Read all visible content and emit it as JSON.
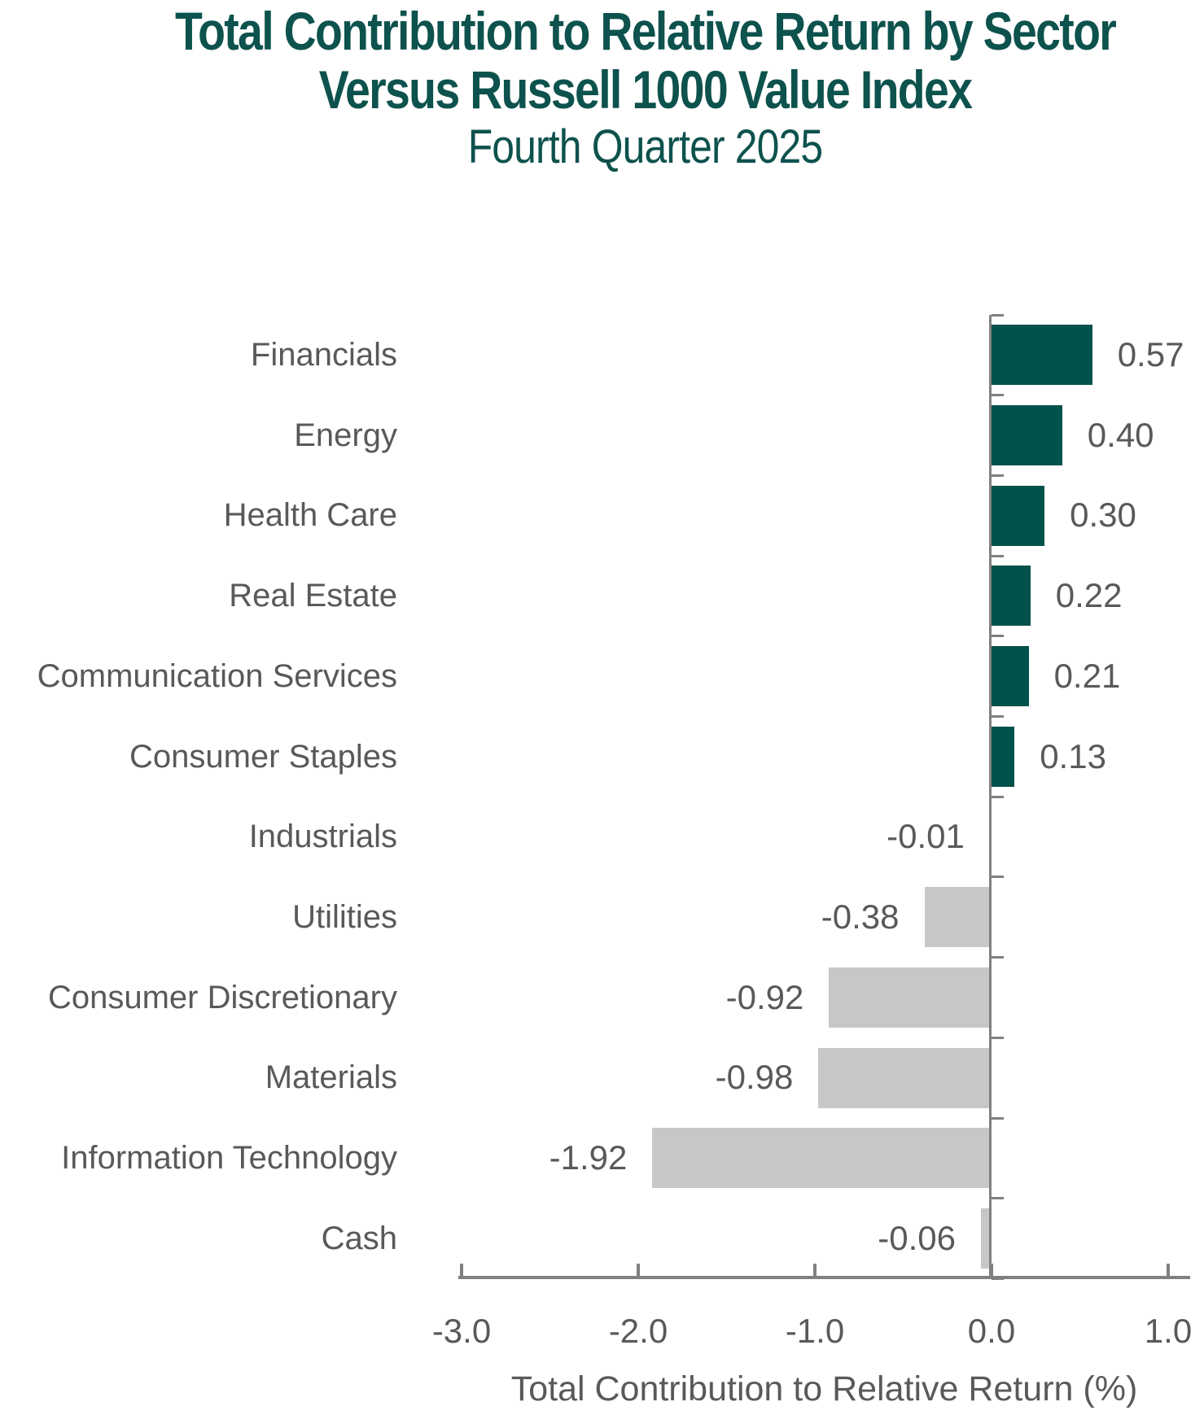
{
  "title": {
    "line1": "Total Contribution to Relative Return by Sector",
    "line2": "Versus Russell 1000 Value Index",
    "subtitle": "Fourth Quarter 2025"
  },
  "chart_data": {
    "type": "bar",
    "orientation": "horizontal",
    "categories": [
      "Financials",
      "Energy",
      "Health Care",
      "Real Estate",
      "Communication Services",
      "Consumer Staples",
      "Industrials",
      "Utilities",
      "Consumer Discretionary",
      "Materials",
      "Information Technology",
      "Cash"
    ],
    "values": [
      0.57,
      0.4,
      0.3,
      0.22,
      0.21,
      0.13,
      -0.01,
      -0.38,
      -0.92,
      -0.98,
      -1.92,
      -0.06
    ],
    "value_labels": [
      "0.57",
      "0.40",
      "0.30",
      "0.22",
      "0.21",
      "0.13",
      "-0.01",
      "-0.38",
      "-0.92",
      "-0.98",
      "-1.92",
      "-0.06"
    ],
    "xlabel": "Total Contribution to Relative Return (%)",
    "xlim": [
      -3.0,
      1.0
    ],
    "x_ticks": [
      -3.0,
      -2.0,
      -1.0,
      0.0,
      1.0
    ],
    "x_tick_labels": [
      "-3.0",
      "-2.0",
      "-1.0",
      "0.0",
      "1.0"
    ],
    "grid": false,
    "legend": "none",
    "colors": {
      "positive_bar": "#00524A",
      "negative_bar": "#C7C7C7",
      "axis_line": "#808080",
      "label_text": "#595959",
      "title_text": "#0D524D"
    }
  }
}
